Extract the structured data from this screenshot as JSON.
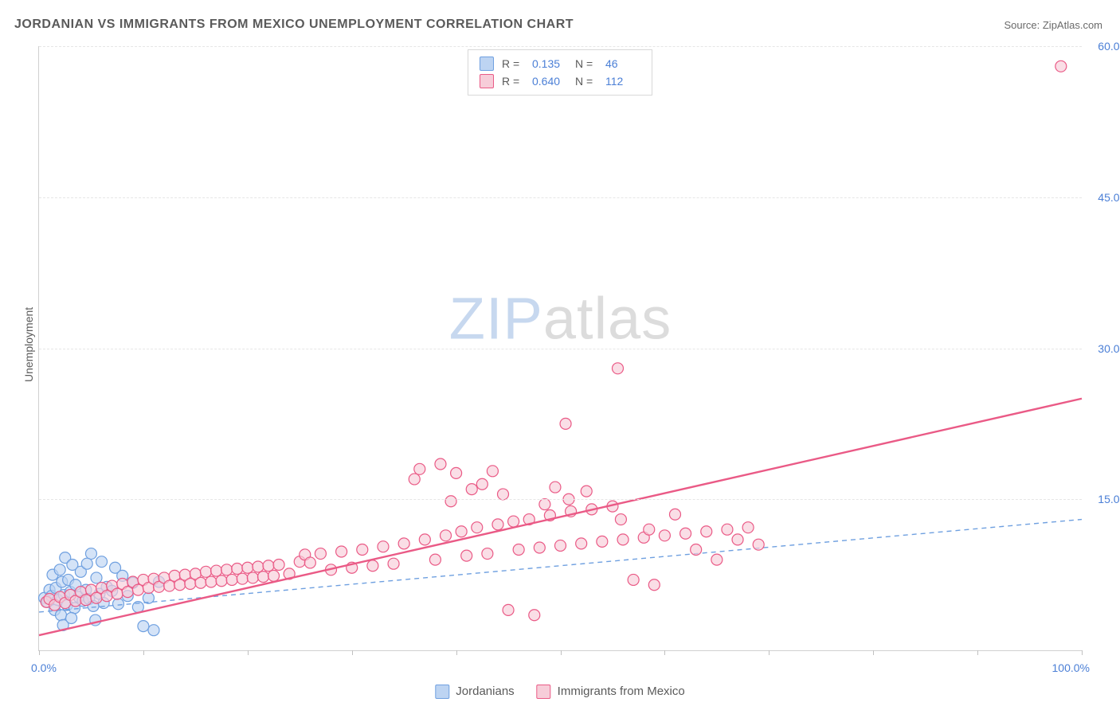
{
  "title": "JORDANIAN VS IMMIGRANTS FROM MEXICO UNEMPLOYMENT CORRELATION CHART",
  "source_label": "Source: ZipAtlas.com",
  "watermark": {
    "part1": "ZIP",
    "part2": "atlas"
  },
  "y_axis_label": "Unemployment",
  "chart": {
    "type": "scatter",
    "background_color": "#ffffff",
    "grid_color": "#e6e6e6",
    "axis_color": "#d0d0d0",
    "tick_color": "#c0c0c0",
    "value_label_color": "#4b7fd6",
    "text_color": "#5a5a5a",
    "xlim": [
      0,
      100
    ],
    "ylim": [
      0,
      60
    ],
    "x_start_label": "0.0%",
    "x_end_label": "100.0%",
    "x_tick_step": 10,
    "y_ticks": [
      15,
      30,
      45,
      60
    ],
    "y_tick_labels": [
      "15.0%",
      "30.0%",
      "45.0%",
      "60.0%"
    ],
    "marker_radius": 7,
    "marker_stroke_width": 1.2,
    "trend_line_width_solid": 2.4,
    "trend_line_width_dash": 1.4,
    "trend_dash_pattern": "6,5",
    "series": [
      {
        "name": "Jordanians",
        "fill": "#bdd4f2",
        "stroke": "#6fa0e0",
        "trend_color": "#6fa0e0",
        "trend_style": "dashed",
        "trend": {
          "x0": 0,
          "y0": 3.8,
          "x1": 100,
          "y1": 13.0
        },
        "R_label": "R =",
        "R_value": "0.135",
        "N_label": "N =",
        "N_value": "46",
        "points": [
          [
            0.5,
            5.2
          ],
          [
            0.8,
            4.8
          ],
          [
            1.0,
            6.0
          ],
          [
            1.2,
            5.4
          ],
          [
            1.3,
            7.5
          ],
          [
            1.5,
            4.0
          ],
          [
            1.6,
            6.2
          ],
          [
            1.8,
            5.0
          ],
          [
            2.0,
            8.0
          ],
          [
            2.1,
            3.5
          ],
          [
            2.2,
            6.8
          ],
          [
            2.4,
            5.5
          ],
          [
            2.5,
            9.2
          ],
          [
            2.7,
            4.5
          ],
          [
            2.8,
            7.0
          ],
          [
            3.0,
            5.8
          ],
          [
            3.2,
            8.5
          ],
          [
            3.4,
            4.2
          ],
          [
            3.5,
            6.5
          ],
          [
            3.8,
            5.3
          ],
          [
            4.0,
            7.8
          ],
          [
            4.2,
            4.9
          ],
          [
            4.5,
            6.0
          ],
          [
            4.8,
            5.1
          ],
          [
            5.0,
            9.6
          ],
          [
            5.2,
            4.4
          ],
          [
            5.5,
            7.2
          ],
          [
            5.8,
            5.6
          ],
          [
            6.0,
            8.8
          ],
          [
            6.2,
            4.7
          ],
          [
            6.5,
            6.3
          ],
          [
            7.0,
            5.9
          ],
          [
            7.3,
            8.2
          ],
          [
            7.6,
            4.6
          ],
          [
            8.0,
            7.4
          ],
          [
            8.5,
            5.4
          ],
          [
            9.0,
            6.7
          ],
          [
            9.5,
            4.3
          ],
          [
            10.0,
            2.4
          ],
          [
            10.5,
            5.2
          ],
          [
            11.0,
            2.0
          ],
          [
            11.5,
            6.8
          ],
          [
            2.3,
            2.5
          ],
          [
            3.1,
            3.2
          ],
          [
            5.4,
            3.0
          ],
          [
            4.6,
            8.6
          ]
        ]
      },
      {
        "name": "Immigrants from Mexico",
        "fill": "#f7cdd9",
        "stroke": "#ea5a86",
        "trend_color": "#ea5a86",
        "trend_style": "solid",
        "trend": {
          "x0": 0,
          "y0": 1.5,
          "x1": 100,
          "y1": 25.0
        },
        "R_label": "R =",
        "R_value": "0.640",
        "N_label": "N =",
        "N_value": "112",
        "points": [
          [
            0.7,
            4.8
          ],
          [
            1.0,
            5.1
          ],
          [
            1.5,
            4.5
          ],
          [
            2.0,
            5.3
          ],
          [
            2.5,
            4.7
          ],
          [
            3.0,
            5.5
          ],
          [
            3.5,
            4.9
          ],
          [
            4.0,
            5.8
          ],
          [
            4.5,
            5.0
          ],
          [
            5.0,
            6.0
          ],
          [
            5.5,
            5.2
          ],
          [
            6.0,
            6.2
          ],
          [
            6.5,
            5.4
          ],
          [
            7.0,
            6.4
          ],
          [
            7.5,
            5.6
          ],
          [
            8.0,
            6.6
          ],
          [
            8.5,
            5.8
          ],
          [
            9.0,
            6.8
          ],
          [
            9.5,
            6.0
          ],
          [
            10.0,
            7.0
          ],
          [
            10.5,
            6.2
          ],
          [
            11.0,
            7.1
          ],
          [
            11.5,
            6.3
          ],
          [
            12.0,
            7.2
          ],
          [
            12.5,
            6.4
          ],
          [
            13.0,
            7.4
          ],
          [
            13.5,
            6.5
          ],
          [
            14.0,
            7.5
          ],
          [
            14.5,
            6.6
          ],
          [
            15.0,
            7.6
          ],
          [
            15.5,
            6.7
          ],
          [
            16.0,
            7.8
          ],
          [
            16.5,
            6.8
          ],
          [
            17.0,
            7.9
          ],
          [
            17.5,
            6.9
          ],
          [
            18.0,
            8.0
          ],
          [
            18.5,
            7.0
          ],
          [
            19.0,
            8.1
          ],
          [
            19.5,
            7.1
          ],
          [
            20.0,
            8.2
          ],
          [
            20.5,
            7.2
          ],
          [
            21.0,
            8.3
          ],
          [
            21.5,
            7.3
          ],
          [
            22.0,
            8.4
          ],
          [
            22.5,
            7.4
          ],
          [
            23.0,
            8.5
          ],
          [
            24.0,
            7.6
          ],
          [
            25.0,
            8.8
          ],
          [
            25.5,
            9.5
          ],
          [
            26.0,
            8.7
          ],
          [
            27.0,
            9.6
          ],
          [
            28.0,
            8.0
          ],
          [
            29.0,
            9.8
          ],
          [
            30.0,
            8.2
          ],
          [
            31.0,
            10.0
          ],
          [
            32.0,
            8.4
          ],
          [
            33.0,
            10.3
          ],
          [
            34.0,
            8.6
          ],
          [
            35.0,
            10.6
          ],
          [
            36.0,
            17.0
          ],
          [
            37.0,
            11.0
          ],
          [
            38.0,
            9.0
          ],
          [
            38.5,
            18.5
          ],
          [
            39.0,
            11.4
          ],
          [
            40.0,
            17.6
          ],
          [
            40.5,
            11.8
          ],
          [
            41.0,
            9.4
          ],
          [
            41.5,
            16.0
          ],
          [
            42.0,
            12.2
          ],
          [
            43.0,
            9.6
          ],
          [
            43.5,
            17.8
          ],
          [
            44.0,
            12.5
          ],
          [
            44.5,
            15.5
          ],
          [
            45.0,
            4.0
          ],
          [
            45.5,
            12.8
          ],
          [
            46.0,
            10.0
          ],
          [
            47.0,
            13.0
          ],
          [
            47.5,
            3.5
          ],
          [
            48.0,
            10.2
          ],
          [
            49.0,
            13.4
          ],
          [
            49.5,
            16.2
          ],
          [
            50.0,
            10.4
          ],
          [
            50.5,
            22.5
          ],
          [
            51.0,
            13.8
          ],
          [
            52.0,
            10.6
          ],
          [
            53.0,
            14.0
          ],
          [
            54.0,
            10.8
          ],
          [
            55.0,
            14.3
          ],
          [
            55.5,
            28.0
          ],
          [
            56.0,
            11.0
          ],
          [
            57.0,
            7.0
          ],
          [
            58.0,
            11.2
          ],
          [
            58.5,
            12.0
          ],
          [
            59.0,
            6.5
          ],
          [
            60.0,
            11.4
          ],
          [
            61.0,
            13.5
          ],
          [
            62.0,
            11.6
          ],
          [
            63.0,
            10.0
          ],
          [
            64.0,
            11.8
          ],
          [
            65.0,
            9.0
          ],
          [
            66.0,
            12.0
          ],
          [
            67.0,
            11.0
          ],
          [
            68.0,
            12.2
          ],
          [
            69.0,
            10.5
          ],
          [
            98.0,
            58.0
          ],
          [
            52.5,
            15.8
          ],
          [
            55.8,
            13.0
          ],
          [
            48.5,
            14.5
          ],
          [
            39.5,
            14.8
          ],
          [
            42.5,
            16.5
          ],
          [
            36.5,
            18.0
          ],
          [
            50.8,
            15.0
          ]
        ]
      }
    ]
  }
}
